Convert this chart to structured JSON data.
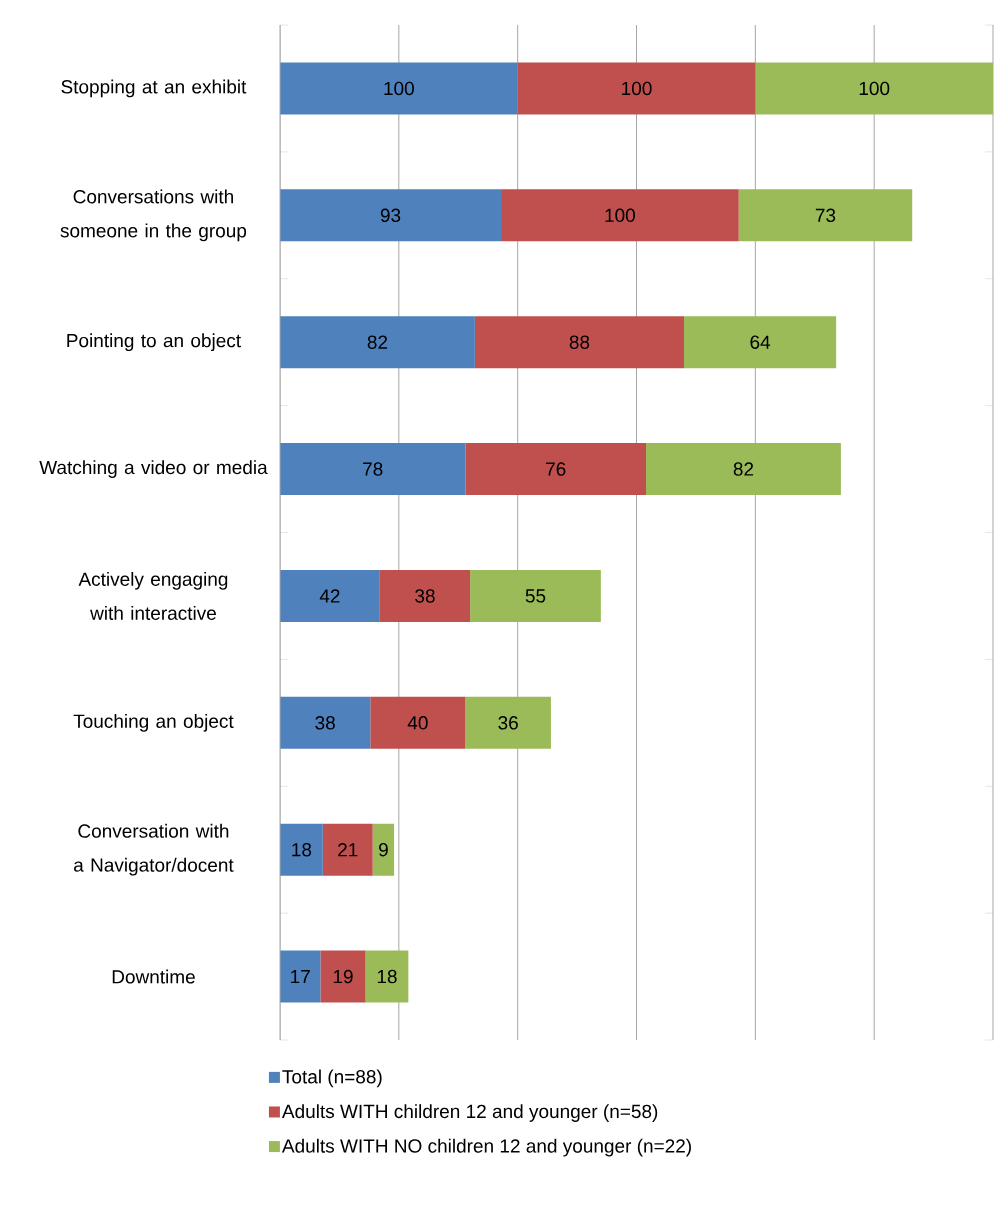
{
  "chart_data": {
    "type": "bar",
    "orientation": "horizontal",
    "stacked": true,
    "data_labels": true,
    "grid": "x",
    "legend": "bottom",
    "tick_labels": "y",
    "categories": [
      "Stopping at an exhibit",
      "Conversations with someone in the group",
      "Pointing to an object",
      "Watching a video or media",
      "Actively engaging with interactive",
      "Touching an object",
      "Conversation with a Navigator/docent",
      "Downtime"
    ],
    "series": [
      {
        "name": "Total (n=88)",
        "color": "#4f81bd",
        "values": [
          100,
          93,
          82,
          78,
          42,
          38,
          18,
          17
        ]
      },
      {
        "name": "Adults WITH children 12 and younger (n=58)",
        "color": "#c0504d",
        "values": [
          100,
          100,
          88,
          76,
          38,
          40,
          21,
          19
        ]
      },
      {
        "name": "Adults WITH NO children 12 and younger (n=22)",
        "color": "#9bbb59",
        "values": [
          100,
          73,
          64,
          82,
          55,
          36,
          9,
          18
        ]
      }
    ]
  }
}
